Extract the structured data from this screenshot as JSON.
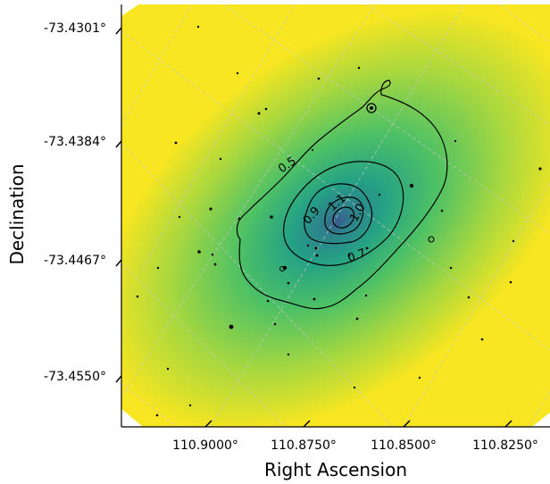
{
  "chart_data": {
    "type": "heatmap",
    "title": "",
    "xlabel": "Right Ascension",
    "ylabel": "Declination",
    "x_ticks": [
      {
        "label": "110.9000°",
        "value": 110.9
      },
      {
        "label": "110.8750°",
        "value": 110.875
      },
      {
        "label": "110.8500°",
        "value": 110.85
      },
      {
        "label": "110.8250°",
        "value": 110.825
      }
    ],
    "y_ticks": [
      {
        "label": "-73.4301°",
        "value": -73.4301
      },
      {
        "label": "-73.4384°",
        "value": -73.4384
      },
      {
        "label": "-73.4467°",
        "value": -73.4467
      },
      {
        "label": "-73.4550°",
        "value": -73.455
      }
    ],
    "contours": [
      {
        "level": 0.5,
        "label": "0.5"
      },
      {
        "level": 0.7,
        "label": "0.7"
      },
      {
        "level": 0.9,
        "label": "0.9"
      },
      {
        "level": 1.0,
        "label": "1.0"
      },
      {
        "level": 1.1,
        "label": "1.1"
      }
    ],
    "colormap": [
      "#3b5a8e",
      "#2e7f8c",
      "#25a285",
      "#4ec165",
      "#a5d740",
      "#f7e621"
    ],
    "grid": true,
    "grid_color": "#c8c8c8",
    "contour_color": "#000000",
    "background_fill": "#ffffff"
  }
}
